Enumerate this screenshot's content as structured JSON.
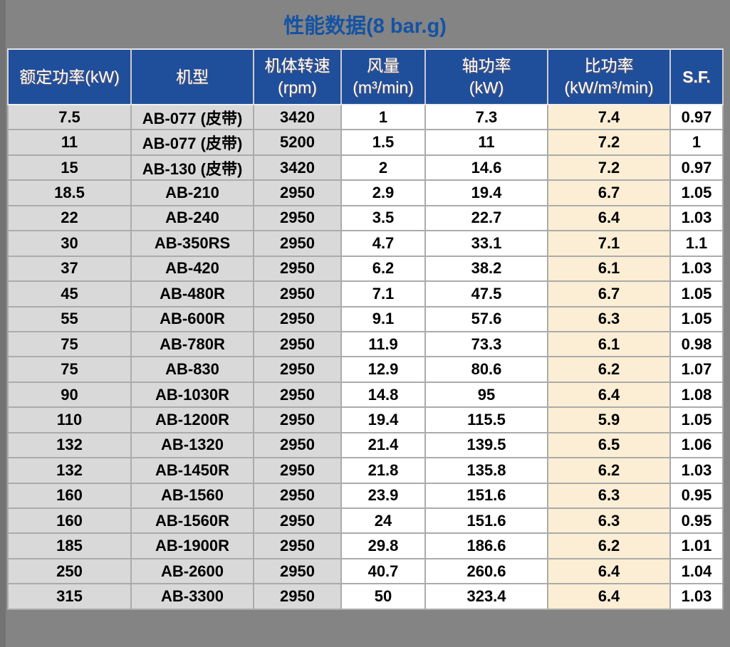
{
  "title": "性能数据(8 bar.g)",
  "colors": {
    "page_background": "#848484",
    "title_text": "#1353A5",
    "header_background": "#1F4E9B",
    "header_text": "#FFFFFF",
    "cell_gray": "#D9D9D9",
    "cell_white": "#FFFFFF",
    "cell_cream": "#FBEED4",
    "grid_line": "#ABABAB",
    "body_text": "#000000"
  },
  "table": {
    "header_lines": [
      {
        "line1": "额定功率(kW)",
        "line2": ""
      },
      {
        "line1": "机型",
        "line2": ""
      },
      {
        "line1": "机体转速",
        "line2": "(rpm)"
      },
      {
        "line1": "风量",
        "line2": "(m³/min)"
      },
      {
        "line1": "轴功率",
        "line2": "(kW)"
      },
      {
        "line1": "比功率",
        "line2": "(kW/m³/min)"
      },
      {
        "line1": "S.F.",
        "line2": ""
      }
    ],
    "column_styles": [
      "gray",
      "gray",
      "gray",
      "white",
      "white",
      "cream",
      "white"
    ]
  },
  "chart_data": {
    "type": "table",
    "title": "性能数据(8 bar.g)",
    "columns": [
      "额定功率(kW)",
      "机型",
      "机体转速(rpm)",
      "风量(m³/min)",
      "轴功率(kW)",
      "比功率(kW/m³/min)",
      "S.F."
    ],
    "rows": [
      [
        "7.5",
        "AB-077 (皮带)",
        "3420",
        "1",
        "7.3",
        "7.4",
        "0.97"
      ],
      [
        "11",
        "AB-077 (皮带)",
        "5200",
        "1.5",
        "11",
        "7.2",
        "1"
      ],
      [
        "15",
        "AB-130 (皮带)",
        "3420",
        "2",
        "14.6",
        "7.2",
        "0.97"
      ],
      [
        "18.5",
        "AB-210",
        "2950",
        "2.9",
        "19.4",
        "6.7",
        "1.05"
      ],
      [
        "22",
        "AB-240",
        "2950",
        "3.5",
        "22.7",
        "6.4",
        "1.03"
      ],
      [
        "30",
        "AB-350RS",
        "2950",
        "4.7",
        "33.1",
        "7.1",
        "1.1"
      ],
      [
        "37",
        "AB-420",
        "2950",
        "6.2",
        "38.2",
        "6.1",
        "1.03"
      ],
      [
        "45",
        "AB-480R",
        "2950",
        "7.1",
        "47.5",
        "6.7",
        "1.05"
      ],
      [
        "55",
        "AB-600R",
        "2950",
        "9.1",
        "57.6",
        "6.3",
        "1.05"
      ],
      [
        "75",
        "AB-780R",
        "2950",
        "11.9",
        "73.3",
        "6.1",
        "0.98"
      ],
      [
        "75",
        "AB-830",
        "2950",
        "12.9",
        "80.6",
        "6.2",
        "1.07"
      ],
      [
        "90",
        "AB-1030R",
        "2950",
        "14.8",
        "95",
        "6.4",
        "1.08"
      ],
      [
        "110",
        "AB-1200R",
        "2950",
        "19.4",
        "115.5",
        "5.9",
        "1.05"
      ],
      [
        "132",
        "AB-1320",
        "2950",
        "21.4",
        "139.5",
        "6.5",
        "1.06"
      ],
      [
        "132",
        "AB-1450R",
        "2950",
        "21.8",
        "135.8",
        "6.2",
        "1.03"
      ],
      [
        "160",
        "AB-1560",
        "2950",
        "23.9",
        "151.6",
        "6.3",
        "0.95"
      ],
      [
        "160",
        "AB-1560R",
        "2950",
        "24",
        "151.6",
        "6.3",
        "0.95"
      ],
      [
        "185",
        "AB-1900R",
        "2950",
        "29.8",
        "186.6",
        "6.2",
        "1.01"
      ],
      [
        "250",
        "AB-2600",
        "2950",
        "40.7",
        "260.6",
        "6.4",
        "1.04"
      ],
      [
        "315",
        "AB-3300",
        "2950",
        "50",
        "323.4",
        "6.4",
        "1.03"
      ]
    ]
  }
}
